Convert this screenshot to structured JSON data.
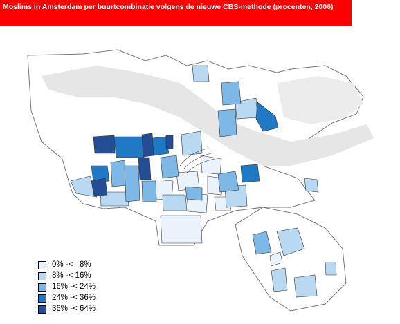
{
  "title": "Moslims in Amsterdam per buurtcombinatie volgens de nieuwe CBS-methode (procenten, 2006)",
  "colors": {
    "title_bg": "#ff0000",
    "title_text": "#ffffff",
    "class_0": "#eaf3fb",
    "class_1": "#b9d8f1",
    "class_2": "#7db8e6",
    "class_3": "#1f79c5",
    "class_4": "#234e94",
    "water": "#e6e6e6",
    "outline": "#555555"
  },
  "legend": [
    {
      "label": "0% -<   8%",
      "color_key": "class_0"
    },
    {
      "label": "8% -< 16%",
      "color_key": "class_1"
    },
    {
      "label": "16% -< 24%",
      "color_key": "class_2"
    },
    {
      "label": "24% -< 36%",
      "color_key": "class_3"
    },
    {
      "label": "36% -< 64%",
      "color_key": "class_4"
    }
  ]
}
